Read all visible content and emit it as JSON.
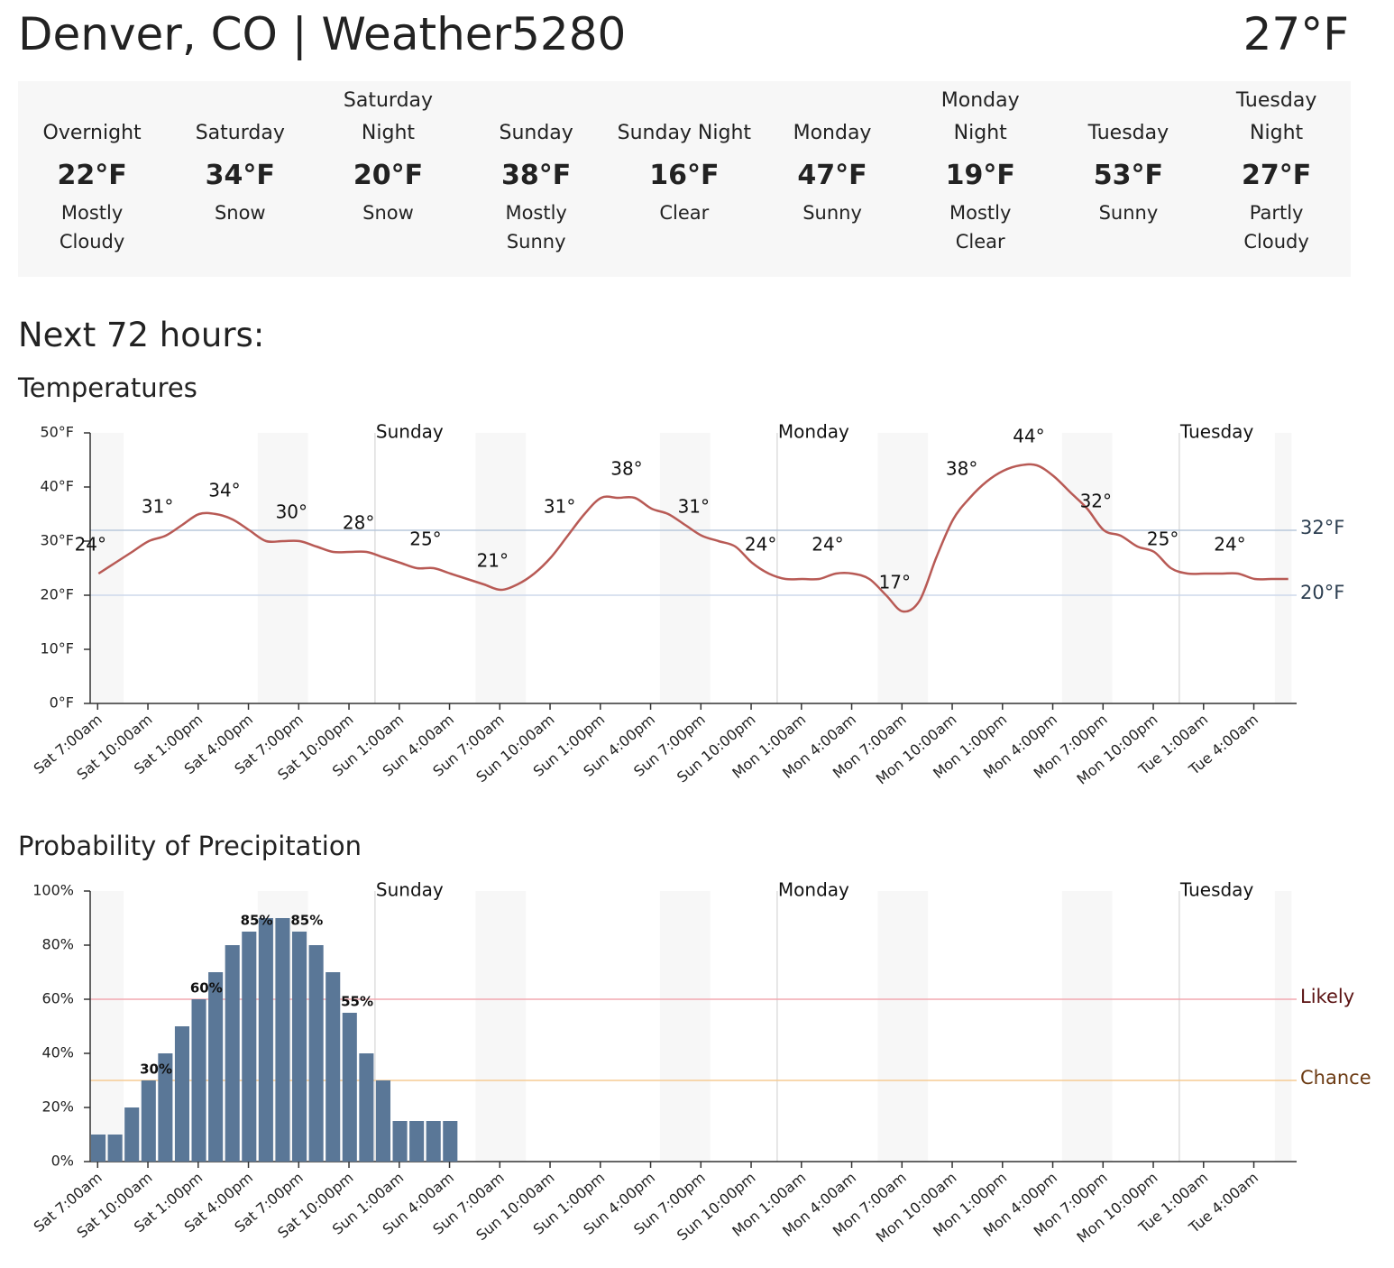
{
  "header": {
    "title": "Denver, CO | Weather5280",
    "current_temp": "27°F"
  },
  "forecast": [
    {
      "name": "Overnight",
      "temp": "22°F",
      "condition": "Mostly Cloudy"
    },
    {
      "name": "Saturday",
      "temp": "34°F",
      "condition": "Snow"
    },
    {
      "name": "Saturday Night",
      "temp": "20°F",
      "condition": "Snow"
    },
    {
      "name": "Sunday",
      "temp": "38°F",
      "condition": "Mostly Sunny"
    },
    {
      "name": "Sunday Night",
      "temp": "16°F",
      "condition": "Clear"
    },
    {
      "name": "Monday",
      "temp": "47°F",
      "condition": "Sunny"
    },
    {
      "name": "Monday Night",
      "temp": "19°F",
      "condition": "Mostly Clear"
    },
    {
      "name": "Tuesday",
      "temp": "53°F",
      "condition": "Sunny"
    },
    {
      "name": "Tuesday Night",
      "temp": "27°F",
      "condition": "Partly Cloudy"
    }
  ],
  "section_title": "Next 72 hours:",
  "chart_data": [
    {
      "type": "line",
      "title": "Temperatures",
      "color": "#b85a55",
      "categories": [
        "Sat 7:00am",
        null,
        null,
        "Sat 10:00am",
        null,
        null,
        "Sat 1:00pm",
        null,
        null,
        "Sat 4:00pm",
        null,
        null,
        "Sat 7:00pm",
        null,
        null,
        "Sat 10:00pm",
        null,
        null,
        "Sun 1:00am",
        null,
        null,
        "Sun 4:00am",
        null,
        null,
        "Sun 7:00am",
        null,
        null,
        "Sun 10:00am",
        null,
        null,
        "Sun 1:00pm",
        null,
        null,
        "Sun 4:00pm",
        null,
        null,
        "Sun 7:00pm",
        null,
        null,
        "Sun 10:00pm",
        null,
        null,
        "Mon 1:00am",
        null,
        null,
        "Mon 4:00am",
        null,
        null,
        "Mon 7:00am",
        null,
        null,
        "Mon 10:00am",
        null,
        null,
        "Mon 1:00pm",
        null,
        null,
        "Mon 4:00pm",
        null,
        null,
        "Mon 7:00pm",
        null,
        null,
        "Mon 10:00pm",
        null,
        null,
        "Tue 1:00am",
        null,
        null,
        "Tue 4:00am",
        null,
        null
      ],
      "values": [
        24,
        26,
        28,
        30,
        31,
        33,
        35,
        35,
        34,
        32,
        30,
        30,
        30,
        29,
        28,
        28,
        28,
        27,
        26,
        25,
        25,
        24,
        23,
        22,
        21,
        22,
        24,
        27,
        31,
        35,
        38,
        38,
        38,
        36,
        35,
        33,
        31,
        30,
        29,
        26,
        24,
        23,
        23,
        23,
        24,
        24,
        23,
        20,
        17,
        19,
        27,
        34,
        38,
        41,
        43,
        44,
        44,
        42,
        39,
        36,
        32,
        31,
        29,
        28,
        25,
        24,
        24,
        24,
        24,
        23,
        23,
        23
      ],
      "value_labels": [
        "24°",
        null,
        null,
        null,
        "31°",
        null,
        null,
        null,
        "34°",
        null,
        null,
        null,
        "30°",
        null,
        null,
        null,
        "28°",
        null,
        null,
        null,
        "25°",
        null,
        null,
        null,
        "21°",
        null,
        null,
        null,
        "31°",
        null,
        null,
        null,
        "38°",
        null,
        null,
        null,
        "31°",
        null,
        null,
        null,
        "24°",
        null,
        null,
        null,
        "24°",
        null,
        null,
        null,
        "17°",
        null,
        null,
        null,
        "38°",
        null,
        null,
        null,
        "44°",
        null,
        null,
        null,
        "32°",
        null,
        null,
        null,
        "25°",
        null,
        null,
        null,
        "24°",
        null,
        null,
        null
      ],
      "ylim": [
        0,
        50
      ],
      "yticks": [
        {
          "value": 0,
          "label": "0°F"
        },
        {
          "value": 10,
          "label": "10°F"
        },
        {
          "value": 20,
          "label": "20°F"
        },
        {
          "value": 30,
          "label": "30°F"
        },
        {
          "value": 40,
          "label": "40°F"
        },
        {
          "value": 50,
          "label": "50°F"
        }
      ],
      "reference_lines": [
        {
          "value": 32,
          "label": "32°F",
          "color": "#b8c8dc",
          "label_color": "#2c3e50"
        },
        {
          "value": 20,
          "label": "20°F",
          "color": "#cdd8ec",
          "label_color": "#2c3e50"
        }
      ],
      "day_markers": [
        {
          "label": "Sunday",
          "at": 17
        },
        {
          "label": "Monday",
          "at": 41
        },
        {
          "label": "Tuesday",
          "at": 65
        }
      ]
    },
    {
      "type": "bar",
      "title": "Probability of Precipitation",
      "color": "#5a7797",
      "categories": [
        "Sat 7:00am",
        null,
        null,
        "Sat 10:00am",
        null,
        null,
        "Sat 1:00pm",
        null,
        null,
        "Sat 4:00pm",
        null,
        null,
        "Sat 7:00pm",
        null,
        null,
        "Sat 10:00pm",
        null,
        null,
        "Sun 1:00am",
        null,
        null,
        "Sun 4:00am",
        null,
        null,
        "Sun 7:00am",
        null,
        null,
        "Sun 10:00am",
        null,
        null,
        "Sun 1:00pm",
        null,
        null,
        "Sun 4:00pm",
        null,
        null,
        "Sun 7:00pm",
        null,
        null,
        "Sun 10:00pm",
        null,
        null,
        "Mon 1:00am",
        null,
        null,
        "Mon 4:00am",
        null,
        null,
        "Mon 7:00am",
        null,
        null,
        "Mon 10:00am",
        null,
        null,
        "Mon 1:00pm",
        null,
        null,
        "Mon 4:00pm",
        null,
        null,
        "Mon 7:00pm",
        null,
        null,
        "Mon 10:00pm",
        null,
        null,
        "Tue 1:00am",
        null,
        null,
        "Tue 4:00am",
        null,
        null
      ],
      "values": [
        10,
        10,
        20,
        30,
        40,
        50,
        60,
        70,
        80,
        85,
        90,
        90,
        85,
        80,
        70,
        55,
        40,
        30,
        15,
        15,
        15,
        15,
        0,
        0,
        0,
        0,
        0,
        0,
        0,
        0,
        0,
        0,
        0,
        0,
        0,
        0,
        0,
        0,
        0,
        0,
        0,
        0,
        0,
        0,
        0,
        0,
        0,
        0,
        0,
        0,
        0,
        0,
        0,
        0,
        0,
        0,
        0,
        0,
        0,
        0,
        0,
        0,
        0,
        0,
        0,
        0,
        0,
        0,
        0,
        0,
        0,
        0
      ],
      "value_labels": [
        null,
        null,
        null,
        "30%",
        null,
        null,
        "60%",
        null,
        null,
        "85%",
        null,
        null,
        "85%",
        null,
        null,
        "55%",
        null,
        null,
        null,
        null,
        null,
        null,
        null,
        null,
        null,
        null,
        null,
        null,
        null,
        null,
        null,
        null,
        null,
        null,
        null,
        null,
        null,
        null,
        null,
        null,
        null,
        null,
        null,
        null,
        null,
        null,
        null,
        null,
        null,
        null,
        null,
        null,
        null,
        null,
        null,
        null,
        null,
        null,
        null,
        null,
        null,
        null,
        null,
        null,
        null,
        null,
        null,
        null,
        null,
        null,
        null,
        null
      ],
      "ylim": [
        0,
        100
      ],
      "yticks": [
        {
          "value": 0,
          "label": "0%"
        },
        {
          "value": 20,
          "label": "20%"
        },
        {
          "value": 40,
          "label": "40%"
        },
        {
          "value": 60,
          "label": "60%"
        },
        {
          "value": 80,
          "label": "80%"
        },
        {
          "value": 100,
          "label": "100%"
        }
      ],
      "reference_lines": [
        {
          "value": 60,
          "label": "Likely",
          "color": "#f2a9b0",
          "label_color": "#5a1212"
        },
        {
          "value": 30,
          "label": "Chance",
          "color": "#f6cc94",
          "label_color": "#6b3a12"
        }
      ],
      "day_markers": [
        {
          "label": "Sunday",
          "at": 17
        },
        {
          "label": "Monday",
          "at": 41
        },
        {
          "label": "Tuesday",
          "at": 65
        }
      ]
    }
  ]
}
